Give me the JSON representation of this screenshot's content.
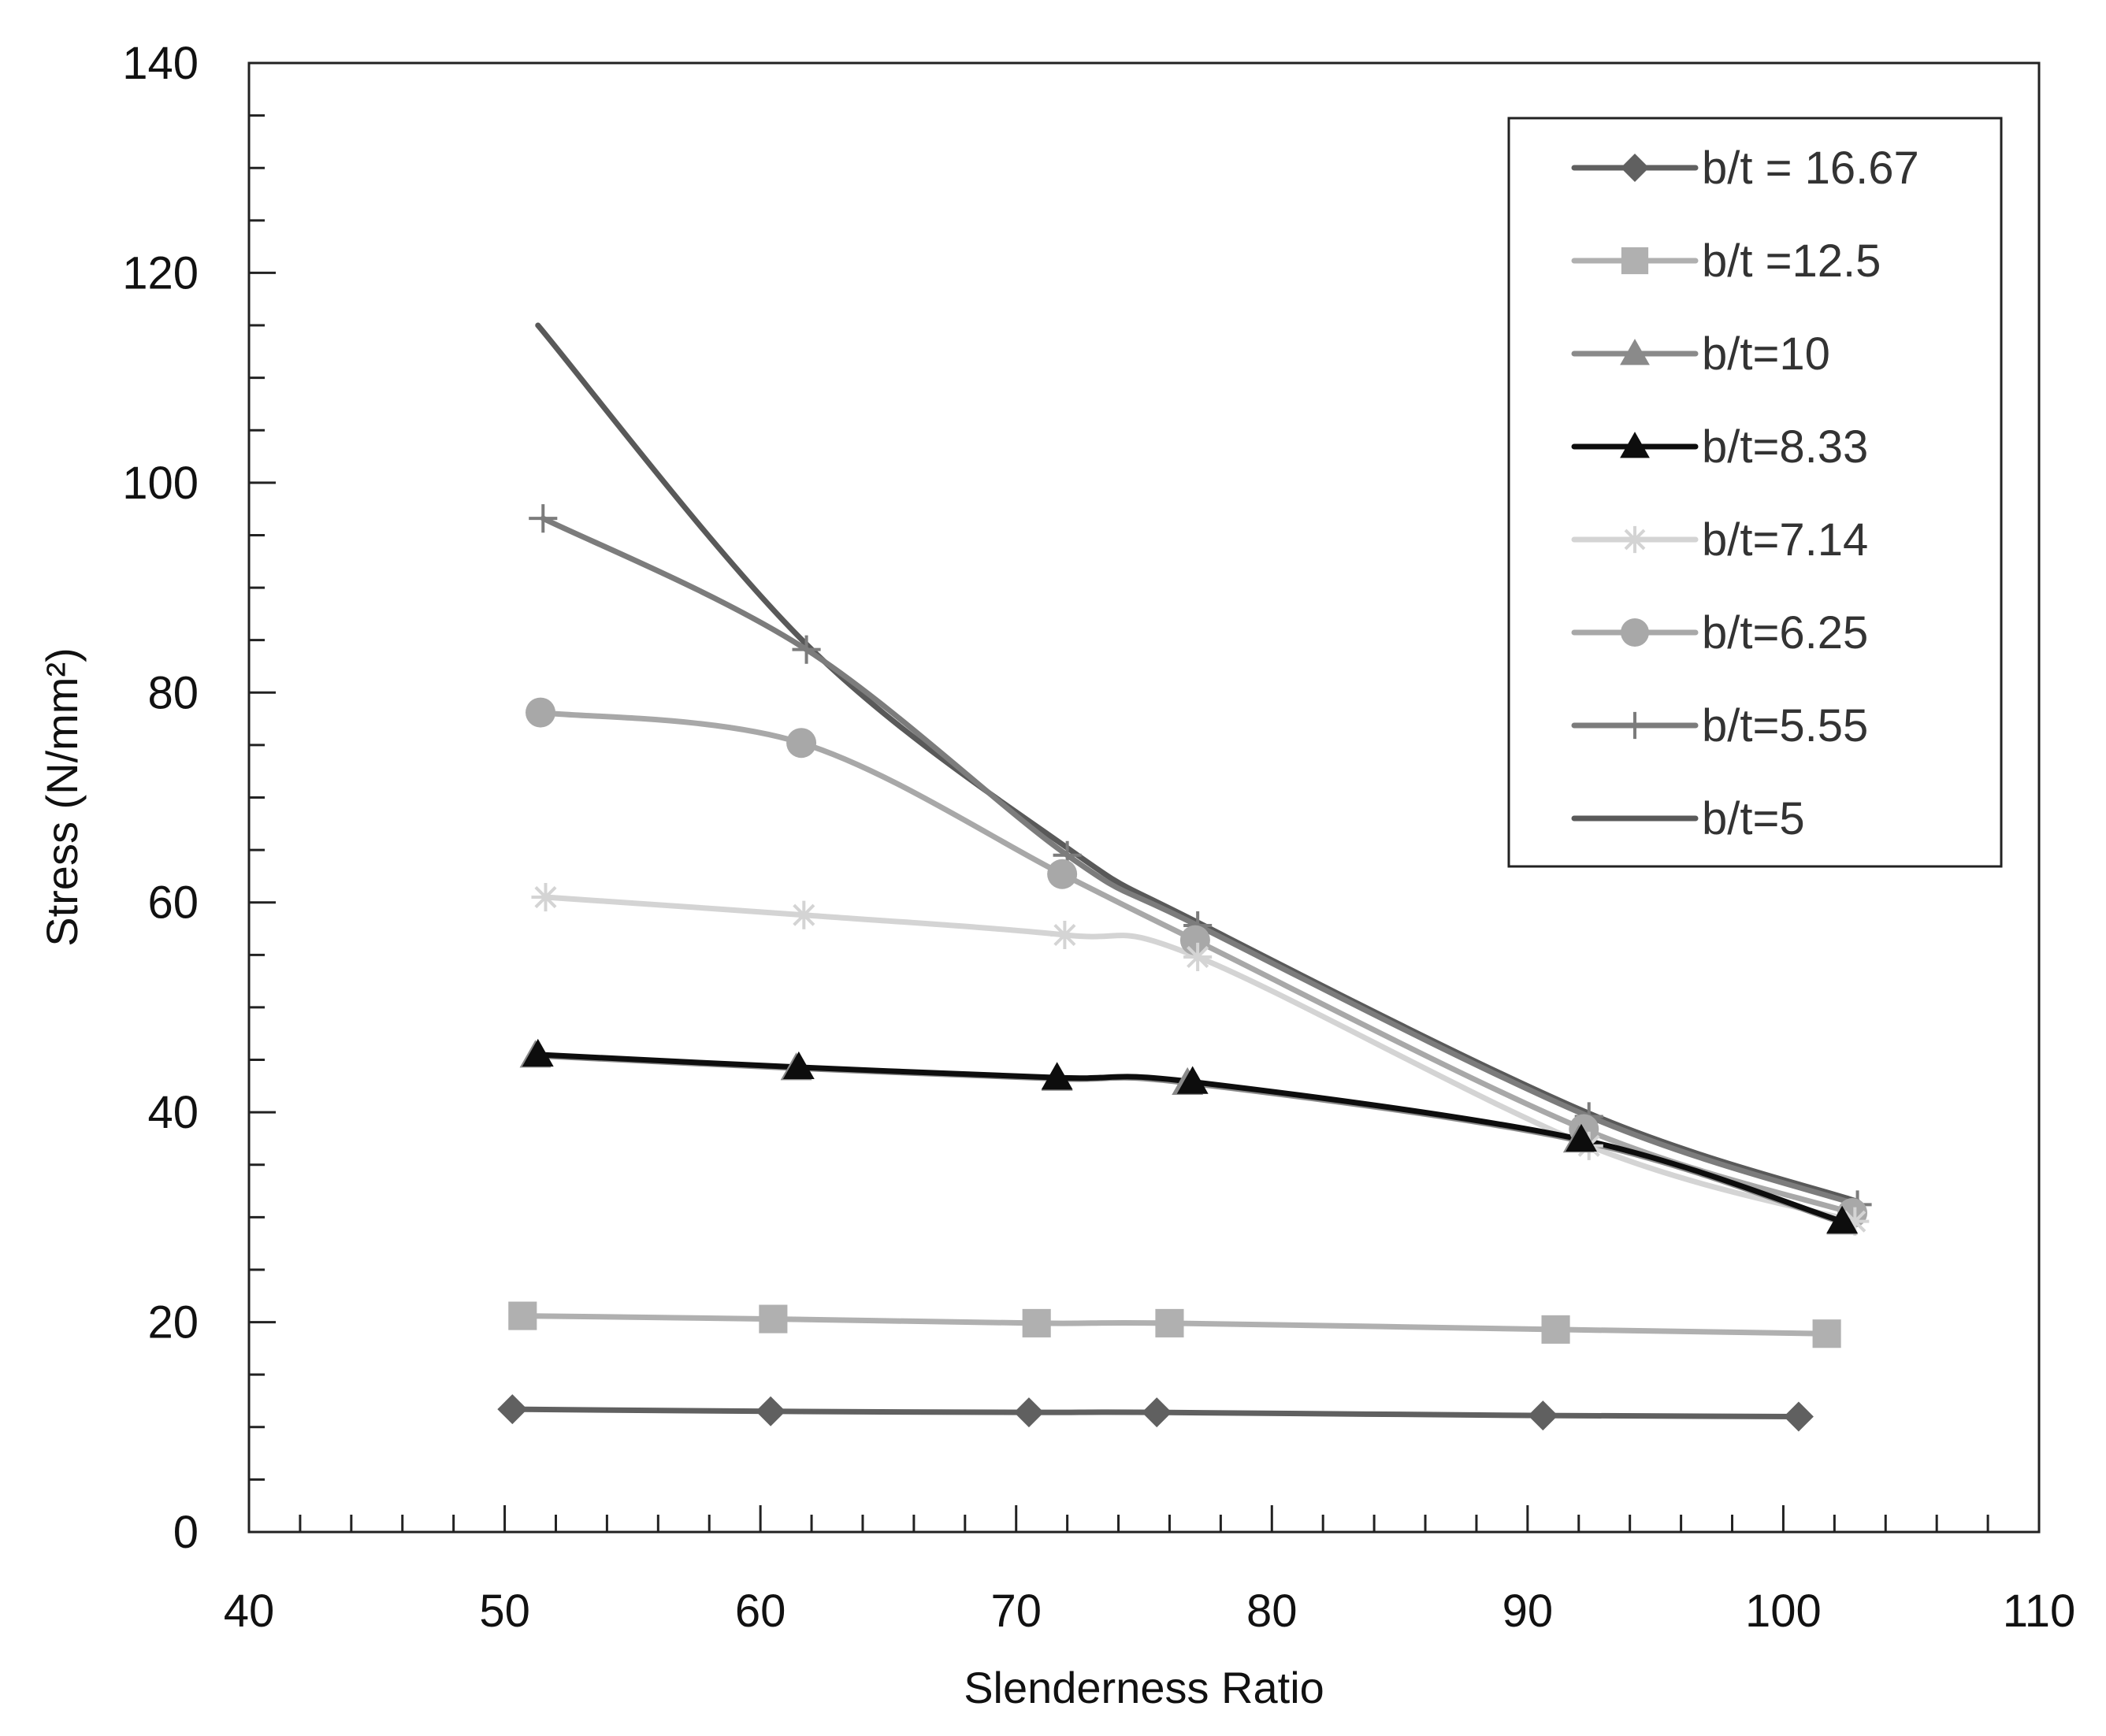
{
  "chart_data": {
    "type": "line",
    "title": "",
    "xlabel": "Slenderness Ratio",
    "ylabel": "Stress (N/mm²)",
    "xlim": [
      40,
      110
    ],
    "ylim": [
      0,
      140
    ],
    "x_major_ticks": [
      40,
      50,
      60,
      70,
      80,
      90,
      100,
      110
    ],
    "y_major_ticks": [
      0,
      20,
      40,
      60,
      80,
      100,
      120,
      140
    ],
    "x_minor_step": 2,
    "y_minor_step": 5,
    "grid": false,
    "legend_position": "top-right",
    "series": [
      {
        "name": "b/t = 16.67",
        "marker": "diamond",
        "color": "#606060",
        "x": [
          50.3,
          60.4,
          70.5,
          75.5,
          90.6,
          100.6
        ],
        "values": [
          11.7,
          11.5,
          11.4,
          11.4,
          11.1,
          11.0
        ]
      },
      {
        "name": "b/t =12.5",
        "marker": "square",
        "color": "#b0b0b0",
        "x": [
          50.7,
          60.5,
          70.8,
          76.0,
          91.1,
          101.7
        ],
        "values": [
          20.6,
          20.3,
          19.9,
          19.9,
          19.3,
          18.9
        ]
      },
      {
        "name": "b/t=10",
        "marker": "triangle",
        "color": "#8a8a8a",
        "x": [
          51.2,
          61.4,
          71.6,
          76.7,
          92.0,
          102.3
        ],
        "values": [
          45.4,
          44.2,
          43.2,
          42.8,
          37.3,
          29.5
        ]
      },
      {
        "name": "b/t=8.33",
        "marker": "triangle",
        "color": "#0d0d0d",
        "x": [
          51.3,
          61.5,
          71.6,
          76.9,
          92.1,
          102.3
        ],
        "values": [
          45.5,
          44.3,
          43.3,
          42.9,
          37.4,
          29.6
        ]
      },
      {
        "name": "b/t=7.14",
        "marker": "star",
        "color": "#d4d4d4",
        "x": [
          51.6,
          61.7,
          71.9,
          77.1,
          92.4,
          102.8
        ],
        "values": [
          60.5,
          58.8,
          56.9,
          54.8,
          36.8,
          29.6
        ]
      },
      {
        "name": "b/t=6.25",
        "marker": "circle",
        "color": "#a8a8a8",
        "x": [
          51.4,
          61.6,
          71.8,
          77.0,
          92.2,
          102.7
        ],
        "values": [
          78.1,
          75.2,
          62.7,
          56.4,
          38.4,
          30.4
        ]
      },
      {
        "name": "b/t=5.55",
        "marker": "plus",
        "color": "#7c7c7c",
        "x": [
          51.5,
          61.8,
          72.0,
          77.1,
          92.4,
          102.9
        ],
        "values": [
          96.6,
          84.1,
          64.5,
          57.8,
          39.6,
          31.2
        ]
      },
      {
        "name": "b/t=5",
        "marker": "none",
        "color": "#595959",
        "x": [
          51.3,
          61.8,
          72.0,
          77.1,
          92.4,
          102.9
        ],
        "values": [
          115.0,
          84.6,
          65.2,
          58.1,
          39.9,
          31.5
        ]
      }
    ]
  }
}
